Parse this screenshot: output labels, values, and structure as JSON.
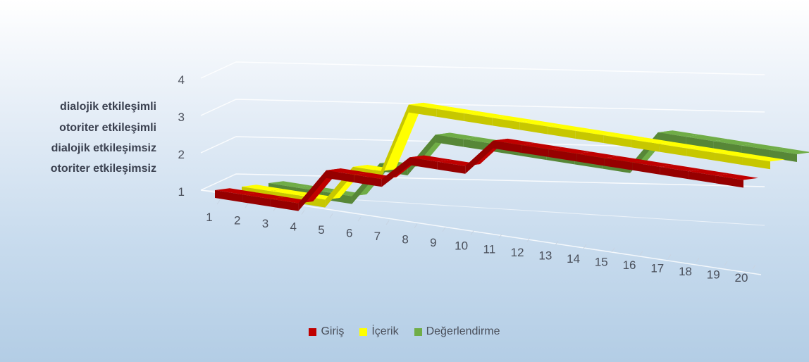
{
  "chart_data": {
    "type": "line",
    "style": "3d-ribbon",
    "categories": [
      "1",
      "2",
      "3",
      "4",
      "5",
      "6",
      "7",
      "8",
      "9",
      "10",
      "11",
      "12",
      "13",
      "14",
      "15",
      "16",
      "17",
      "18",
      "19",
      "20"
    ],
    "y_levels": [
      {
        "value": 1,
        "tick": "1",
        "label": "otoriter etkileşimsiz"
      },
      {
        "value": 2,
        "tick": "2",
        "label": "dialojik etkileşimsiz"
      },
      {
        "value": 3,
        "tick": "3",
        "label": "otoriter etkileşimli"
      },
      {
        "value": 4,
        "tick": "4",
        "label": "dialojik etkileşimli"
      }
    ],
    "ylim": [
      1,
      4
    ],
    "grid": true,
    "legend_position": "bottom",
    "series": [
      {
        "name": "Giriş",
        "color": "#c00000",
        "values": [
          1,
          1,
          1,
          1,
          2,
          2,
          2,
          2.7,
          2.7,
          2.7,
          3.5,
          3.5,
          3.5,
          3.5,
          3.5,
          3.5,
          3.5,
          3.5,
          3.5,
          3.5
        ]
      },
      {
        "name": "İçerik",
        "color": "#ffff00",
        "values": [
          1,
          1,
          1,
          1,
          2,
          2,
          3.9,
          3.9,
          3.9,
          3.9,
          3.9,
          3.9,
          3.9,
          3.9,
          3.9,
          3.9,
          3.9,
          3.9,
          3.9,
          3.9
        ]
      },
      {
        "name": "Değerlendirme",
        "color": "#70ad47",
        "values": [
          1,
          1,
          1,
          1,
          2,
          2,
          3,
          3,
          3,
          3,
          3,
          3,
          3,
          3,
          4,
          4,
          4,
          4,
          4,
          4
        ]
      }
    ]
  }
}
